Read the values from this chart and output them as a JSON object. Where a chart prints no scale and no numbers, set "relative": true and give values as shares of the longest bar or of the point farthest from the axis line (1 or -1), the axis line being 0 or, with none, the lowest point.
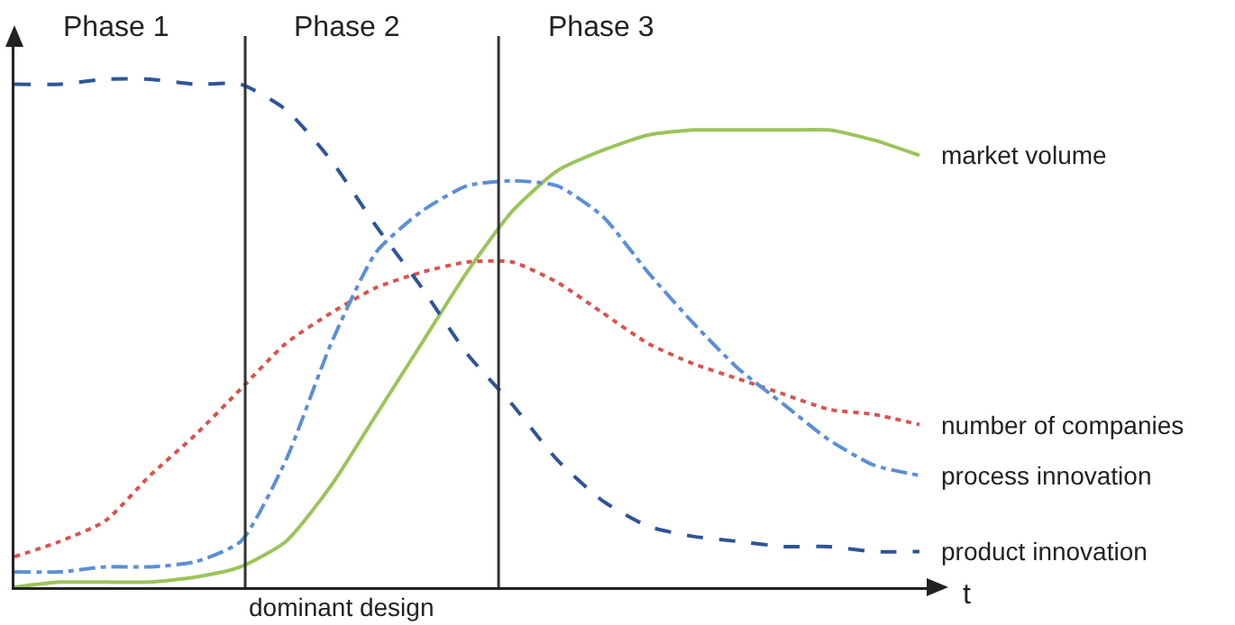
{
  "chart_data": {
    "type": "line",
    "relative": true,
    "xlabel": "t",
    "legend": false,
    "grid": false,
    "categories": [
      null,
      null,
      null,
      null,
      null,
      null,
      null,
      null,
      null,
      null,
      null,
      null,
      null,
      null,
      null,
      null,
      null,
      null,
      null,
      null,
      null
    ],
    "series": [
      {
        "name": "market volume",
        "color": "#9bc45a",
        "line_style": "solid",
        "values": [
          0.0,
          0.01,
          0.01,
          0.01,
          0.02,
          0.04,
          0.09,
          0.2,
          0.34,
          0.48,
          0.62,
          0.74,
          0.82,
          0.86,
          0.89,
          0.9,
          0.9,
          0.9,
          0.9,
          0.88,
          0.85
        ]
      },
      {
        "name": "number of companies",
        "color": "#d9534f",
        "line_style": "dotted",
        "values": [
          0.06,
          0.09,
          0.13,
          0.22,
          0.3,
          0.39,
          0.48,
          0.54,
          0.59,
          0.62,
          0.64,
          0.64,
          0.6,
          0.54,
          0.48,
          0.44,
          0.41,
          0.38,
          0.35,
          0.34,
          0.32
        ]
      },
      {
        "name": "process innovation",
        "color": "#5b8fd6",
        "line_style": "dashdot",
        "values": [
          0.03,
          0.03,
          0.04,
          0.04,
          0.05,
          0.09,
          0.25,
          0.48,
          0.66,
          0.74,
          0.79,
          0.8,
          0.79,
          0.73,
          0.62,
          0.52,
          0.43,
          0.36,
          0.29,
          0.24,
          0.22
        ]
      },
      {
        "name": "product innovation",
        "color": "#2e5597",
        "line_style": "dashed",
        "values": [
          0.99,
          0.99,
          1.0,
          1.0,
          0.99,
          0.99,
          0.94,
          0.84,
          0.71,
          0.59,
          0.46,
          0.36,
          0.25,
          0.17,
          0.12,
          0.1,
          0.09,
          0.08,
          0.08,
          0.07,
          0.07
        ]
      }
    ],
    "annotations": [
      "Phase 1",
      "Phase 2",
      "Phase 3",
      "dominant design"
    ]
  }
}
